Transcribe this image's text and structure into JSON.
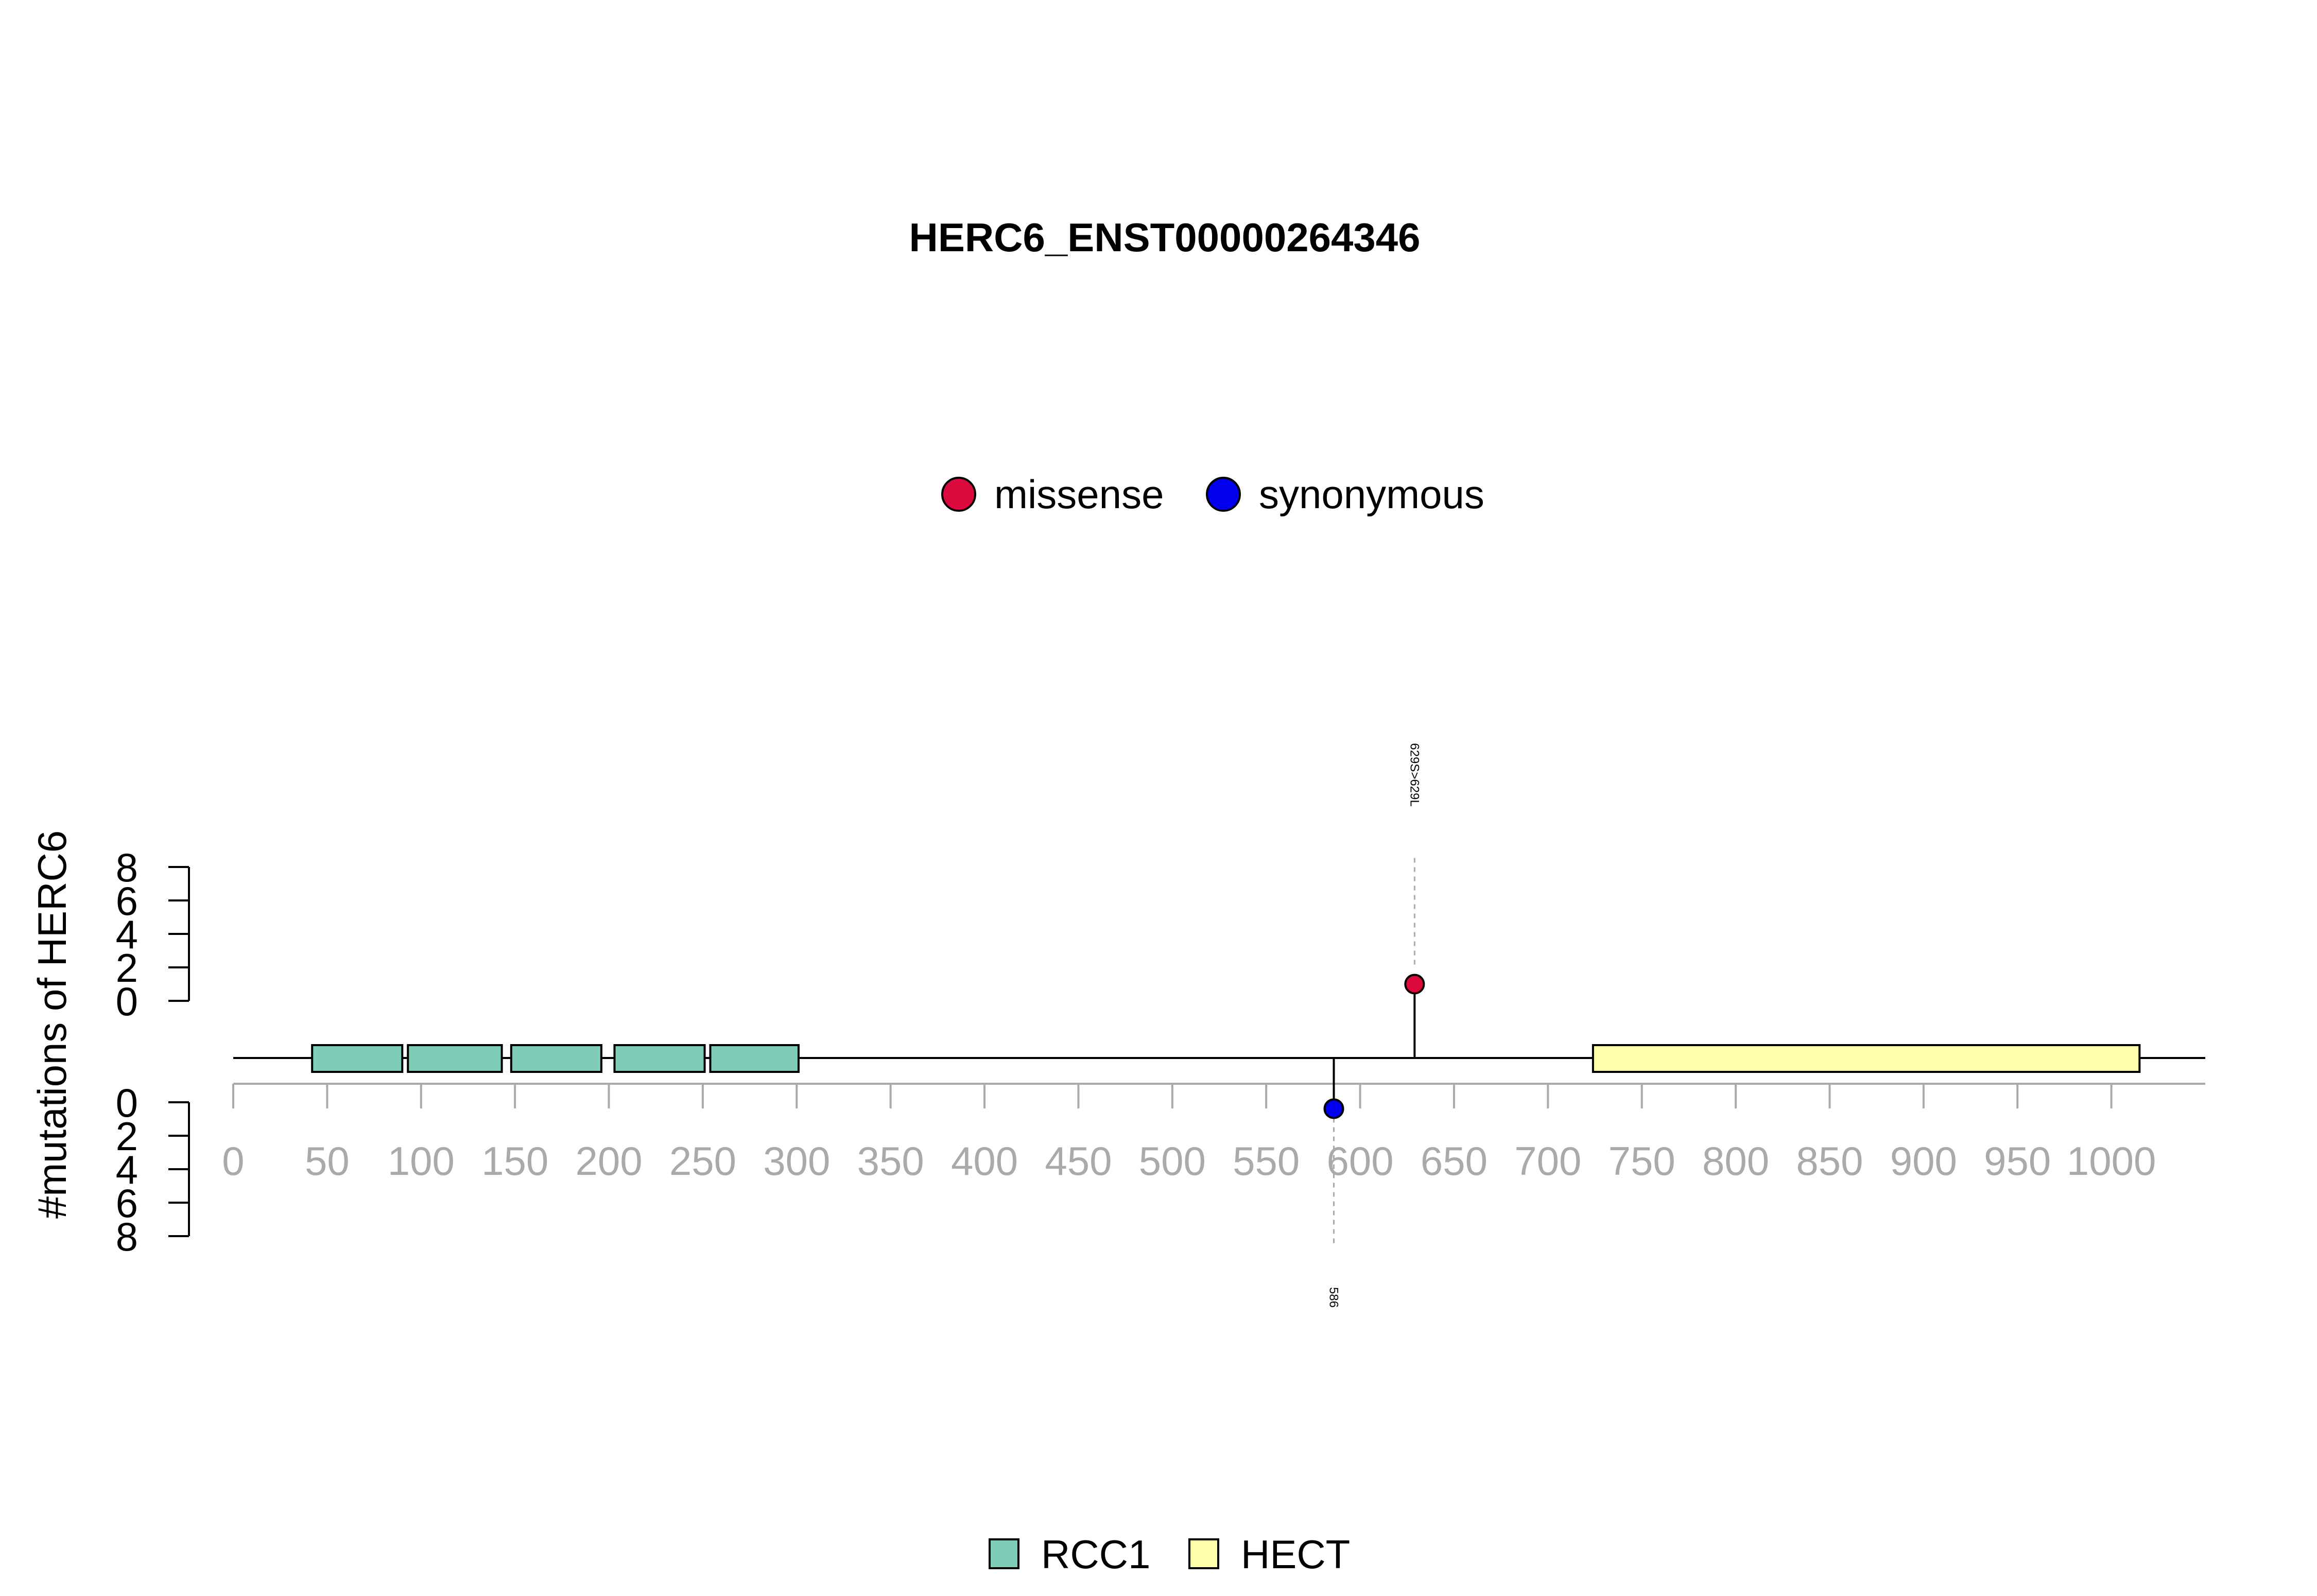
{
  "chart_data": {
    "type": "lollipop",
    "title": "HERC6_ENST00000264346",
    "ylabel": "#mutations of HERC6",
    "protein_length": 1022,
    "xlim": [
      0,
      1050
    ],
    "x_ticks": [
      0,
      50,
      100,
      150,
      200,
      250,
      300,
      350,
      400,
      450,
      500,
      550,
      600,
      650,
      700,
      750,
      800,
      850,
      900,
      950,
      1000
    ],
    "y_top_ticks": [
      0,
      2,
      4,
      6,
      8
    ],
    "y_bottom_ticks": [
      0,
      2,
      4,
      6,
      8
    ],
    "mutation_legend": [
      {
        "name": "missense",
        "color": "#dc0a3c"
      },
      {
        "name": "synonymous",
        "color": "#0000ee"
      }
    ],
    "domain_legend": [
      {
        "name": "RCC1",
        "color": "#7fccb8"
      },
      {
        "name": "HECT",
        "color": "#ffffaa"
      }
    ],
    "domains": [
      {
        "name": "RCC1",
        "start": 42,
        "end": 90
      },
      {
        "name": "RCC1",
        "start": 93,
        "end": 143
      },
      {
        "name": "RCC1",
        "start": 148,
        "end": 196
      },
      {
        "name": "RCC1",
        "start": 203,
        "end": 251
      },
      {
        "name": "RCC1",
        "start": 254,
        "end": 301
      },
      {
        "name": "HECT",
        "start": 724,
        "end": 1015
      }
    ],
    "mutations": [
      {
        "position": 629,
        "count": 1,
        "type": "missense",
        "side": "top",
        "label": "629S>629L"
      },
      {
        "position": 586,
        "count": 1,
        "type": "synonymous",
        "side": "bottom",
        "label": "586"
      }
    ]
  }
}
